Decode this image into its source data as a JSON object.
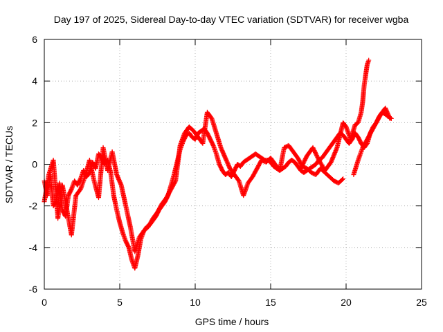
{
  "chart_data": {
    "type": "scatter",
    "title": "Day 197 of 2025, Sidereal Day-to-day VTEC variation (SDTVAR) for receiver wgba",
    "xlabel": "GPS time / hours",
    "ylabel": "SDTVAR / TECUs",
    "xlim": [
      0,
      25
    ],
    "ylim": [
      -6,
      6
    ],
    "x_ticks": [
      0,
      5,
      10,
      15,
      20,
      25
    ],
    "y_ticks": [
      -6,
      -4,
      -2,
      0,
      2,
      4,
      6
    ],
    "x_tick_labels": [
      "0",
      "5",
      "10",
      "15",
      "20",
      "25"
    ],
    "y_tick_labels": [
      "-6",
      "-4",
      "-2",
      "0",
      "2",
      "4",
      "6"
    ],
    "grid": true,
    "marker": "+",
    "color": "#ff0000",
    "series": [
      {
        "x": [
          0.0,
          0.2,
          0.4,
          0.6,
          0.8,
          1.0,
          1.2,
          1.4,
          1.6,
          1.8,
          2.0,
          2.2,
          2.4,
          2.6,
          2.8,
          3.0,
          3.2,
          3.4,
          3.6,
          3.8,
          4.0,
          4.2,
          4.4,
          4.6,
          4.8,
          5.0,
          5.2,
          5.4,
          5.6,
          5.8,
          6.0,
          6.2,
          6.4,
          6.6,
          6.8,
          7.0,
          7.2,
          7.4,
          7.6,
          7.8,
          8.0,
          8.2,
          8.4,
          8.6,
          8.8,
          9.0,
          9.2,
          9.4,
          9.6,
          9.8,
          10.0,
          10.2,
          10.4,
          10.6,
          10.8,
          11.0,
          11.2,
          11.4,
          11.6,
          11.8,
          12.0,
          12.2,
          12.4,
          12.6,
          12.8,
          13.0,
          13.2,
          13.4,
          13.6,
          13.8,
          14.0,
          14.2,
          14.4,
          14.6,
          14.8,
          15.0,
          15.2,
          15.4,
          15.6,
          15.8,
          16.0,
          16.2,
          16.4,
          16.6,
          16.8,
          17.0,
          17.2,
          17.4,
          17.6,
          17.8,
          18.0,
          18.2,
          18.4,
          18.6,
          18.8,
          19.0,
          19.2,
          19.4,
          19.6,
          19.8,
          20.0,
          20.2,
          20.4,
          20.6,
          20.8,
          21.0,
          21.2,
          21.4,
          21.6,
          21.8,
          22.0,
          22.2,
          22.4,
          22.6,
          22.8,
          23.0
        ],
        "y": [
          -0.8,
          -1.5,
          -0.5,
          -2.0,
          -1.8,
          -0.9,
          -2.2,
          -2.5,
          -1.5,
          -1.2,
          -0.8,
          -1.0,
          -0.7,
          -0.3,
          -0.6,
          -0.4,
          0.1,
          -0.2,
          0.5,
          0.3,
          0.0,
          0.2,
          -0.4,
          -1.5,
          -2.2,
          -2.8,
          -3.3,
          -3.7,
          -4.0,
          -4.6,
          -5.0,
          -4.4,
          -3.6,
          -3.2,
          -3.0,
          -2.9,
          -2.7,
          -2.5,
          -2.2,
          -2.0,
          -1.8,
          -1.5,
          -1.0,
          -0.5,
          0.1,
          0.7,
          1.1,
          1.4,
          1.5,
          1.3,
          1.2,
          1.5,
          1.6,
          1.7,
          1.5,
          1.2,
          0.9,
          0.5,
          0.0,
          -0.3,
          -0.5,
          -0.4,
          -0.6,
          -0.3,
          0.0,
          -0.1,
          0.1,
          0.2,
          0.3,
          0.4,
          0.5,
          0.4,
          0.3,
          0.2,
          0.2,
          0.1,
          -0.1,
          -0.2,
          -0.3,
          -0.2,
          -0.1,
          0.1,
          0.2,
          0.1,
          -0.1,
          -0.3,
          -0.4,
          -0.3,
          -0.2,
          -0.1,
          0.0,
          0.2,
          0.3,
          0.5,
          0.7,
          0.9,
          1.1,
          1.3,
          1.5,
          1.4,
          1.2,
          1.0,
          1.2,
          1.5,
          1.3,
          1.0,
          0.8,
          1.0,
          1.5,
          1.8,
          2.0,
          2.3,
          2.5,
          2.4,
          2.3,
          2.2
        ]
      },
      {
        "x": [
          0.0,
          0.3,
          0.6,
          0.9,
          1.2,
          1.5,
          1.8,
          2.1,
          2.4,
          2.7,
          3.0,
          3.3,
          3.6,
          3.9,
          4.2,
          4.5,
          4.8,
          5.1,
          5.4,
          5.7,
          6.0,
          6.3,
          6.6,
          6.9,
          7.2,
          7.5,
          7.8,
          8.1,
          8.4,
          8.7,
          9.0,
          9.3,
          9.6,
          9.9,
          10.2,
          10.5,
          10.8,
          11.1,
          11.4,
          11.7,
          12.0,
          12.3,
          12.6,
          12.9,
          13.2,
          13.5,
          13.8,
          14.1,
          14.4,
          14.7,
          15.0,
          15.3,
          15.6,
          15.9,
          16.2,
          16.5,
          16.8,
          17.1,
          17.4,
          17.7,
          18.0,
          18.3,
          18.6,
          18.9,
          19.2,
          19.5,
          19.8
        ],
        "y": [
          -1.8,
          -0.5,
          0.2,
          -2.6,
          -1.0,
          -2.2,
          -3.4,
          -1.5,
          -1.2,
          -0.6,
          0.2,
          -0.8,
          -1.6,
          0.8,
          -0.3,
          0.6,
          -0.5,
          -1.0,
          -2.0,
          -3.0,
          -4.2,
          -3.5,
          -3.2,
          -3.0,
          -2.6,
          -2.3,
          -1.9,
          -1.6,
          -1.2,
          -0.8,
          0.9,
          1.5,
          1.8,
          1.6,
          1.3,
          1.0,
          2.5,
          2.2,
          1.5,
          0.8,
          0.3,
          -0.2,
          -0.5,
          -0.8,
          -1.5,
          -0.9,
          -0.6,
          -0.2,
          0.2,
          0.1,
          0.3,
          0.0,
          -0.3,
          0.8,
          0.9,
          0.6,
          0.3,
          -0.1,
          -0.2,
          -0.4,
          -0.5,
          -0.2,
          -0.4,
          -0.6,
          -0.8,
          -0.9,
          -0.7
        ]
      },
      {
        "x": [
          17.0,
          17.4,
          17.8,
          18.2,
          18.6,
          19.0,
          19.4,
          19.8,
          20.0,
          20.3,
          20.6,
          20.8,
          21.0,
          21.1,
          21.2,
          21.3,
          21.4,
          21.5
        ],
        "y": [
          -0.2,
          0.4,
          0.8,
          0.2,
          -0.3,
          0.1,
          0.8,
          2.0,
          1.8,
          1.2,
          1.9,
          2.0,
          2.5,
          3.0,
          3.8,
          4.3,
          4.8,
          5.0
        ]
      },
      {
        "x": [
          20.5,
          20.8,
          21.1,
          21.4,
          21.7,
          22.0,
          22.3,
          22.6,
          22.9
        ],
        "y": [
          -0.5,
          0.2,
          0.8,
          1.2,
          1.6,
          2.0,
          2.4,
          2.7,
          2.2
        ]
      }
    ]
  }
}
